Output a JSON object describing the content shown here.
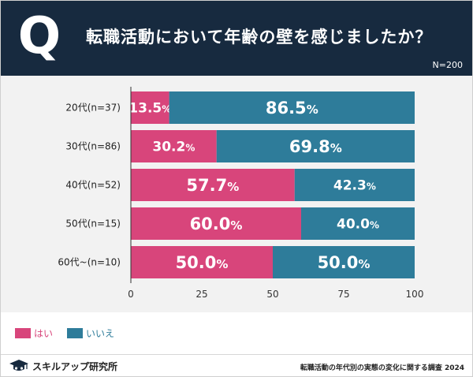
{
  "header": {
    "question_letter": "Q",
    "title": "転職活動において年齢の壁を感じましたか？",
    "sample_size": "N=200"
  },
  "chart_data": {
    "type": "bar",
    "orientation": "horizontal",
    "stacked": true,
    "categories": [
      "20代(n=37)",
      "30代(n=86)",
      "40代(n=52)",
      "50代(n=15)",
      "60代~(n=10)"
    ],
    "series": [
      {
        "name": "はい",
        "color": "#d8457b",
        "values": [
          13.5,
          30.2,
          57.7,
          60.0,
          50.0
        ],
        "labels": [
          "13.5",
          "30.2",
          "57.7",
          "60.0",
          "50.0"
        ]
      },
      {
        "name": "いいえ",
        "color": "#2e7c9a",
        "values": [
          86.5,
          69.8,
          42.3,
          40.0,
          50.0
        ],
        "labels": [
          "86.5",
          "69.8",
          "42.3",
          "40.0",
          "50.0"
        ]
      }
    ],
    "value_unit": "%",
    "xlim": [
      0,
      100
    ],
    "xticks": [
      0,
      25,
      50,
      75,
      100
    ],
    "grid": false,
    "legend": "bottom-left"
  },
  "footer": {
    "brand": "スキルアップ研究所",
    "source": "転職活動の年代別の実態の変化に関する調査 2024"
  }
}
